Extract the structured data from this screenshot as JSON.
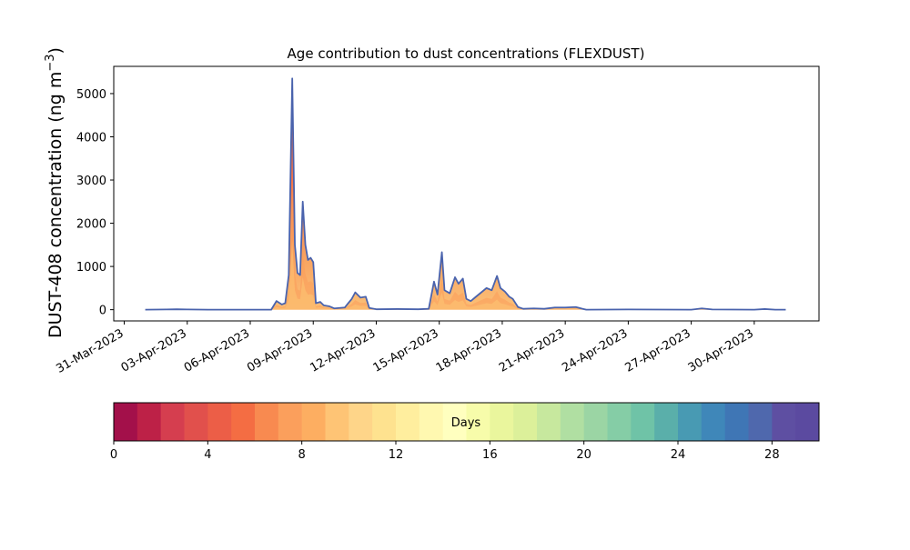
{
  "chart_data": {
    "type": "area",
    "title": "Age contribution to dust concentrations (FLEXDUST)",
    "ylabel_main": "DUST-408 concentration (ng m",
    "ylabel_sup": "−3",
    "ylabel_tail": ")",
    "xlabel": "",
    "x_axis": {
      "type": "date",
      "range": [
        "2023-03-30T12:00",
        "2023-05-03T02:00"
      ],
      "tick_dates": [
        "2023-03-31",
        "2023-04-03",
        "2023-04-06",
        "2023-04-09",
        "2023-04-12",
        "2023-04-15",
        "2023-04-18",
        "2023-04-21",
        "2023-04-24",
        "2023-04-27",
        "2023-04-30"
      ],
      "tick_labels": [
        "31-Mar-2023",
        "03-Apr-2023",
        "06-Apr-2023",
        "09-Apr-2023",
        "12-Apr-2023",
        "15-Apr-2023",
        "18-Apr-2023",
        "21-Apr-2023",
        "24-Apr-2023",
        "27-Apr-2023",
        "30-Apr-2023"
      ]
    },
    "y_axis": {
      "range": [
        -260,
        5630
      ],
      "ticks": [
        0,
        1000,
        2000,
        3000,
        4000,
        5000
      ],
      "tick_labels": [
        "0",
        "1000",
        "2000",
        "3000",
        "4000",
        "5000"
      ]
    },
    "total_series": {
      "color": "#4a63ad",
      "points": [
        [
          "2023-04-01T00:00",
          0
        ],
        [
          "2023-04-02T00:00",
          5
        ],
        [
          "2023-04-02T12:00",
          10
        ],
        [
          "2023-04-03T00:00",
          5
        ],
        [
          "2023-04-04T00:00",
          0
        ],
        [
          "2023-04-06T00:00",
          0
        ],
        [
          "2023-04-07T00:00",
          0
        ],
        [
          "2023-04-07T06:00",
          200
        ],
        [
          "2023-04-07T12:00",
          120
        ],
        [
          "2023-04-07T16:00",
          150
        ],
        [
          "2023-04-07T20:00",
          800
        ],
        [
          "2023-04-08T00:00",
          5350
        ],
        [
          "2023-04-08T03:00",
          1500
        ],
        [
          "2023-04-08T06:00",
          850
        ],
        [
          "2023-04-08T09:00",
          800
        ],
        [
          "2023-04-08T12:00",
          2500
        ],
        [
          "2023-04-08T15:00",
          1500
        ],
        [
          "2023-04-08T18:00",
          1150
        ],
        [
          "2023-04-08T21:00",
          1200
        ],
        [
          "2023-04-09T00:00",
          1100
        ],
        [
          "2023-04-09T03:00",
          150
        ],
        [
          "2023-04-09T08:00",
          180
        ],
        [
          "2023-04-09T12:00",
          100
        ],
        [
          "2023-04-09T18:00",
          80
        ],
        [
          "2023-04-10T00:00",
          30
        ],
        [
          "2023-04-10T12:00",
          50
        ],
        [
          "2023-04-10T20:00",
          250
        ],
        [
          "2023-04-11T00:00",
          400
        ],
        [
          "2023-04-11T06:00",
          280
        ],
        [
          "2023-04-11T12:00",
          300
        ],
        [
          "2023-04-11T16:00",
          40
        ],
        [
          "2023-04-12T00:00",
          10
        ],
        [
          "2023-04-13T00:00",
          15
        ],
        [
          "2023-04-14T00:00",
          10
        ],
        [
          "2023-04-14T12:00",
          20
        ],
        [
          "2023-04-14T18:00",
          650
        ],
        [
          "2023-04-14T22:00",
          350
        ],
        [
          "2023-04-15T03:00",
          1330
        ],
        [
          "2023-04-15T06:00",
          450
        ],
        [
          "2023-04-15T12:00",
          380
        ],
        [
          "2023-04-15T18:00",
          750
        ],
        [
          "2023-04-15T22:00",
          600
        ],
        [
          "2023-04-16T03:00",
          720
        ],
        [
          "2023-04-16T07:00",
          250
        ],
        [
          "2023-04-16T12:00",
          200
        ],
        [
          "2023-04-16T18:00",
          300
        ],
        [
          "2023-04-17T00:00",
          400
        ],
        [
          "2023-04-17T06:00",
          500
        ],
        [
          "2023-04-17T12:00",
          450
        ],
        [
          "2023-04-17T18:00",
          780
        ],
        [
          "2023-04-17T22:00",
          500
        ],
        [
          "2023-04-18T03:00",
          420
        ],
        [
          "2023-04-18T08:00",
          300
        ],
        [
          "2023-04-18T12:00",
          250
        ],
        [
          "2023-04-18T18:00",
          60
        ],
        [
          "2023-04-19T00:00",
          20
        ],
        [
          "2023-04-19T12:00",
          30
        ],
        [
          "2023-04-20T00:00",
          20
        ],
        [
          "2023-04-20T12:00",
          50
        ],
        [
          "2023-04-21T00:00",
          50
        ],
        [
          "2023-04-21T12:00",
          60
        ],
        [
          "2023-04-21T20:00",
          20
        ],
        [
          "2023-04-22T00:00",
          0
        ],
        [
          "2023-04-24T00:00",
          5
        ],
        [
          "2023-04-27T00:00",
          0
        ],
        [
          "2023-04-27T12:00",
          30
        ],
        [
          "2023-04-28T00:00",
          5
        ],
        [
          "2023-04-30T00:00",
          0
        ],
        [
          "2023-04-30T12:00",
          15
        ],
        [
          "2023-05-01T00:00",
          0
        ],
        [
          "2023-05-01T12:00",
          0
        ]
      ]
    },
    "age_bands": {
      "count": 30,
      "description": "stacked age-class contributions shown as red-to-yellow fill beneath the total line",
      "dominant_colors": [
        "#ee5a41",
        "#f3754a",
        "#fb9d59",
        "#fdc775",
        "#feeb9d"
      ]
    },
    "colorbar": {
      "label": "Days",
      "range": [
        0,
        30
      ],
      "ticks": [
        0,
        4,
        8,
        12,
        16,
        20,
        24,
        28
      ],
      "tick_labels": [
        "0",
        "4",
        "8",
        "12",
        "16",
        "20",
        "24",
        "28"
      ],
      "colors": [
        "#a3104a",
        "#bd2147",
        "#d53e4f",
        "#e1504c",
        "#ec5e47",
        "#f46d43",
        "#f88a50",
        "#fb9f5c",
        "#fdae61",
        "#fec475",
        "#fed589",
        "#fee28f",
        "#ffee9e",
        "#fff8b0",
        "#ffffbf",
        "#f7fcaa",
        "#eaf69d",
        "#dcf09a",
        "#c7e89e",
        "#b0dfa2",
        "#9bd5a4",
        "#85cda6",
        "#6fc3a7",
        "#5aafaa",
        "#489ab3",
        "#3f87b9",
        "#3f76b5",
        "#4f68ad",
        "#5e4fa2",
        "#5b4aa0"
      ]
    }
  }
}
